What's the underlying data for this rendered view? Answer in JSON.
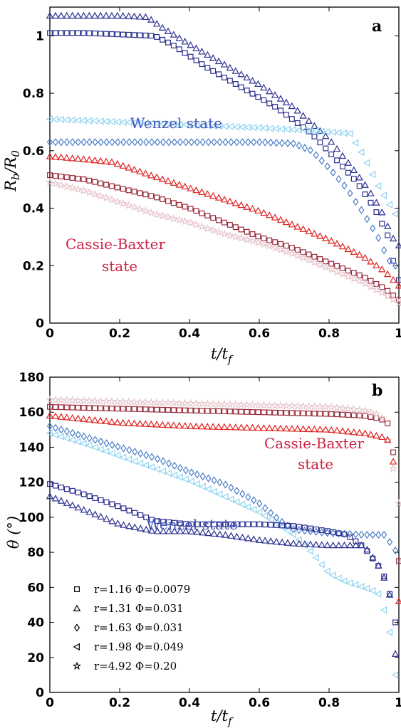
{
  "chart_data": [
    {
      "type": "scatter",
      "panel_label": "a",
      "xlabel": "t/t_f",
      "ylabel": "R_b/R_0",
      "xlim": [
        0,
        1
      ],
      "ylim": [
        0,
        1.1
      ],
      "xticks": [
        "0",
        "0.2",
        "0.4",
        "0.6",
        "0.8",
        "1"
      ],
      "yticks": [
        "0",
        "0.2",
        "0.4",
        "0.6",
        "0.8",
        "1"
      ],
      "annotations": [
        {
          "text": "Wenzel state",
          "color": "#4455bb"
        },
        {
          "text": "Cassie-Baxter",
          "color": "#cc2244"
        },
        {
          "text": "state",
          "color": "#cc2244"
        }
      ],
      "series": [
        {
          "color": "#2a2f8f",
          "marker": "square",
          "points": [
            [
              0,
              1.01
            ],
            [
              0.1,
              1.01
            ],
            [
              0.2,
              1.005
            ],
            [
              0.3,
              1.0
            ],
            [
              0.35,
              0.97
            ],
            [
              0.45,
              0.89
            ],
            [
              0.55,
              0.82
            ],
            [
              0.65,
              0.75
            ],
            [
              0.75,
              0.66
            ],
            [
              0.82,
              0.57
            ],
            [
              0.88,
              0.49
            ],
            [
              0.93,
              0.4
            ],
            [
              0.97,
              0.3
            ],
            [
              0.99,
              0.18
            ],
            [
              1.0,
              0.15
            ]
          ]
        },
        {
          "color": "#2a2f8f",
          "marker": "triangle-up",
          "points": [
            [
              0,
              1.07
            ],
            [
              0.1,
              1.07
            ],
            [
              0.2,
              1.07
            ],
            [
              0.28,
              1.065
            ],
            [
              0.32,
              1.03
            ],
            [
              0.4,
              0.97
            ],
            [
              0.5,
              0.9
            ],
            [
              0.6,
              0.83
            ],
            [
              0.7,
              0.75
            ],
            [
              0.8,
              0.64
            ],
            [
              0.86,
              0.55
            ],
            [
              0.91,
              0.47
            ],
            [
              0.95,
              0.39
            ],
            [
              0.98,
              0.3
            ],
            [
              1.0,
              0.27
            ]
          ]
        },
        {
          "color": "#4a7cc7",
          "marker": "diamond",
          "points": [
            [
              0,
              0.63
            ],
            [
              0.2,
              0.63
            ],
            [
              0.4,
              0.63
            ],
            [
              0.6,
              0.63
            ],
            [
              0.7,
              0.625
            ],
            [
              0.75,
              0.6
            ],
            [
              0.8,
              0.54
            ],
            [
              0.85,
              0.47
            ],
            [
              0.9,
              0.38
            ],
            [
              0.94,
              0.3
            ],
            [
              0.97,
              0.22
            ],
            [
              0.99,
              0.2
            ]
          ]
        },
        {
          "color": "#8fd3f0",
          "marker": "triangle-left",
          "points": [
            [
              0,
              0.71
            ],
            [
              0.2,
              0.7
            ],
            [
              0.4,
              0.69
            ],
            [
              0.6,
              0.68
            ],
            [
              0.75,
              0.67
            ],
            [
              0.86,
              0.66
            ],
            [
              0.9,
              0.58
            ],
            [
              0.94,
              0.48
            ],
            [
              0.97,
              0.42
            ],
            [
              0.99,
              0.38
            ]
          ]
        },
        {
          "color": "#e0201f",
          "marker": "triangle-up",
          "points": [
            [
              0,
              0.58
            ],
            [
              0.1,
              0.57
            ],
            [
              0.18,
              0.56
            ],
            [
              0.3,
              0.51
            ],
            [
              0.4,
              0.47
            ],
            [
              0.5,
              0.43
            ],
            [
              0.6,
              0.39
            ],
            [
              0.7,
              0.34
            ],
            [
              0.8,
              0.29
            ],
            [
              0.9,
              0.23
            ],
            [
              0.96,
              0.18
            ],
            [
              1.0,
              0.13
            ]
          ]
        },
        {
          "color": "#9a2a3a",
          "marker": "square",
          "points": [
            [
              0,
              0.515
            ],
            [
              0.1,
              0.5
            ],
            [
              0.2,
              0.47
            ],
            [
              0.3,
              0.44
            ],
            [
              0.4,
              0.4
            ],
            [
              0.5,
              0.35
            ],
            [
              0.6,
              0.3
            ],
            [
              0.7,
              0.26
            ],
            [
              0.8,
              0.21
            ],
            [
              0.9,
              0.16
            ],
            [
              0.96,
              0.12
            ],
            [
              1.0,
              0.08
            ]
          ]
        },
        {
          "color": "#e6c6cc",
          "marker": "star",
          "points": [
            [
              0,
              0.49
            ],
            [
              0.1,
              0.46
            ],
            [
              0.2,
              0.42
            ],
            [
              0.3,
              0.38
            ],
            [
              0.4,
              0.35
            ],
            [
              0.5,
              0.31
            ],
            [
              0.6,
              0.28
            ],
            [
              0.7,
              0.24
            ],
            [
              0.8,
              0.19
            ],
            [
              0.9,
              0.14
            ],
            [
              0.96,
              0.1
            ],
            [
              1.0,
              0.07
            ]
          ]
        }
      ]
    },
    {
      "type": "scatter",
      "panel_label": "b",
      "xlabel": "t/t_f",
      "ylabel": "θ (°)",
      "xlim": [
        0,
        1
      ],
      "ylim": [
        0,
        180
      ],
      "xticks": [
        "0",
        "0.2",
        "0.4",
        "0.6",
        "0.8",
        "1"
      ],
      "yticks": [
        "0",
        "20",
        "40",
        "60",
        "80",
        "100",
        "120",
        "140",
        "160",
        "180"
      ],
      "annotations": [
        {
          "text": "Cassie-Baxter",
          "color": "#cc2244"
        },
        {
          "text": "state",
          "color": "#cc2244"
        },
        {
          "text": "Wenzel state",
          "color": "#4455bb"
        }
      ],
      "legend": [
        {
          "label": "r=1.16  Φ=0.0079",
          "marker": "square"
        },
        {
          "label": "r=1.31  Φ=0.031",
          "marker": "triangle-up"
        },
        {
          "label": "r=1.63  Φ=0.031",
          "marker": "diamond"
        },
        {
          "label": "r=1.98  Φ=0.049",
          "marker": "triangle-left"
        },
        {
          "label": "r=4.92  Φ=0.20",
          "marker": "star"
        }
      ],
      "legend_position": "lower-left",
      "series": [
        {
          "color": "#9a2a3a",
          "marker": "square",
          "points": [
            [
              0,
              163
            ],
            [
              0.2,
              162
            ],
            [
              0.4,
              161
            ],
            [
              0.6,
              160
            ],
            [
              0.8,
              159
            ],
            [
              0.9,
              158
            ],
            [
              0.95,
              156
            ],
            [
              0.98,
              152
            ],
            [
              1.0,
              75
            ]
          ]
        },
        {
          "color": "#e6c6cc",
          "marker": "star",
          "points": [
            [
              0,
              167
            ],
            [
              0.2,
              166
            ],
            [
              0.4,
              165
            ],
            [
              0.6,
              164
            ],
            [
              0.8,
              163
            ],
            [
              0.9,
              161
            ],
            [
              0.95,
              158
            ],
            [
              0.98,
              134
            ],
            [
              0.99,
              118
            ],
            [
              1.0,
              108
            ]
          ]
        },
        {
          "color": "#e0201f",
          "marker": "triangle-up",
          "points": [
            [
              0,
              158
            ],
            [
              0.2,
              154
            ],
            [
              0.4,
              152
            ],
            [
              0.6,
              151
            ],
            [
              0.8,
              150
            ],
            [
              0.9,
              148
            ],
            [
              0.95,
              146
            ],
            [
              0.98,
              143
            ],
            [
              0.99,
              114
            ],
            [
              1.0,
              52
            ]
          ]
        },
        {
          "color": "#4a7cc7",
          "marker": "diamond",
          "points": [
            [
              0,
              152
            ],
            [
              0.1,
              146
            ],
            [
              0.2,
              140
            ],
            [
              0.3,
              134
            ],
            [
              0.4,
              126
            ],
            [
              0.5,
              119
            ],
            [
              0.6,
              108
            ],
            [
              0.66,
              98
            ],
            [
              0.7,
              93
            ],
            [
              0.8,
              91
            ],
            [
              0.9,
              90
            ],
            [
              0.96,
              90
            ],
            [
              0.99,
              81
            ]
          ]
        },
        {
          "color": "#8fd3f0",
          "marker": "triangle-left",
          "points": [
            [
              0,
              148
            ],
            [
              0.1,
              142
            ],
            [
              0.2,
              135
            ],
            [
              0.3,
              128
            ],
            [
              0.4,
              121
            ],
            [
              0.5,
              112
            ],
            [
              0.6,
              103
            ],
            [
              0.7,
              90
            ],
            [
              0.75,
              80
            ],
            [
              0.8,
              68
            ],
            [
              0.85,
              63
            ],
            [
              0.9,
              60
            ],
            [
              0.94,
              57
            ],
            [
              0.97,
              40
            ],
            [
              0.99,
              10
            ]
          ]
        },
        {
          "color": "#2a2f8f",
          "marker": "square",
          "points": [
            [
              0,
              119
            ],
            [
              0.1,
              113
            ],
            [
              0.2,
              106
            ],
            [
              0.3,
              98
            ],
            [
              0.4,
              96
            ],
            [
              0.5,
              96
            ],
            [
              0.6,
              96
            ],
            [
              0.7,
              95
            ],
            [
              0.8,
              92
            ],
            [
              0.85,
              90
            ],
            [
              0.9,
              83
            ],
            [
              0.95,
              70
            ],
            [
              0.97,
              60
            ],
            [
              0.99,
              40
            ]
          ]
        },
        {
          "color": "#2a2f8f",
          "marker": "triangle-up",
          "points": [
            [
              0,
              112
            ],
            [
              0.1,
              104
            ],
            [
              0.2,
              96
            ],
            [
              0.3,
              92
            ],
            [
              0.4,
              92
            ],
            [
              0.5,
              90
            ],
            [
              0.6,
              87
            ],
            [
              0.7,
              85
            ],
            [
              0.8,
              84
            ],
            [
              0.9,
              84
            ],
            [
              0.95,
              70
            ],
            [
              0.98,
              52
            ],
            [
              0.99,
              22
            ]
          ]
        }
      ]
    }
  ]
}
